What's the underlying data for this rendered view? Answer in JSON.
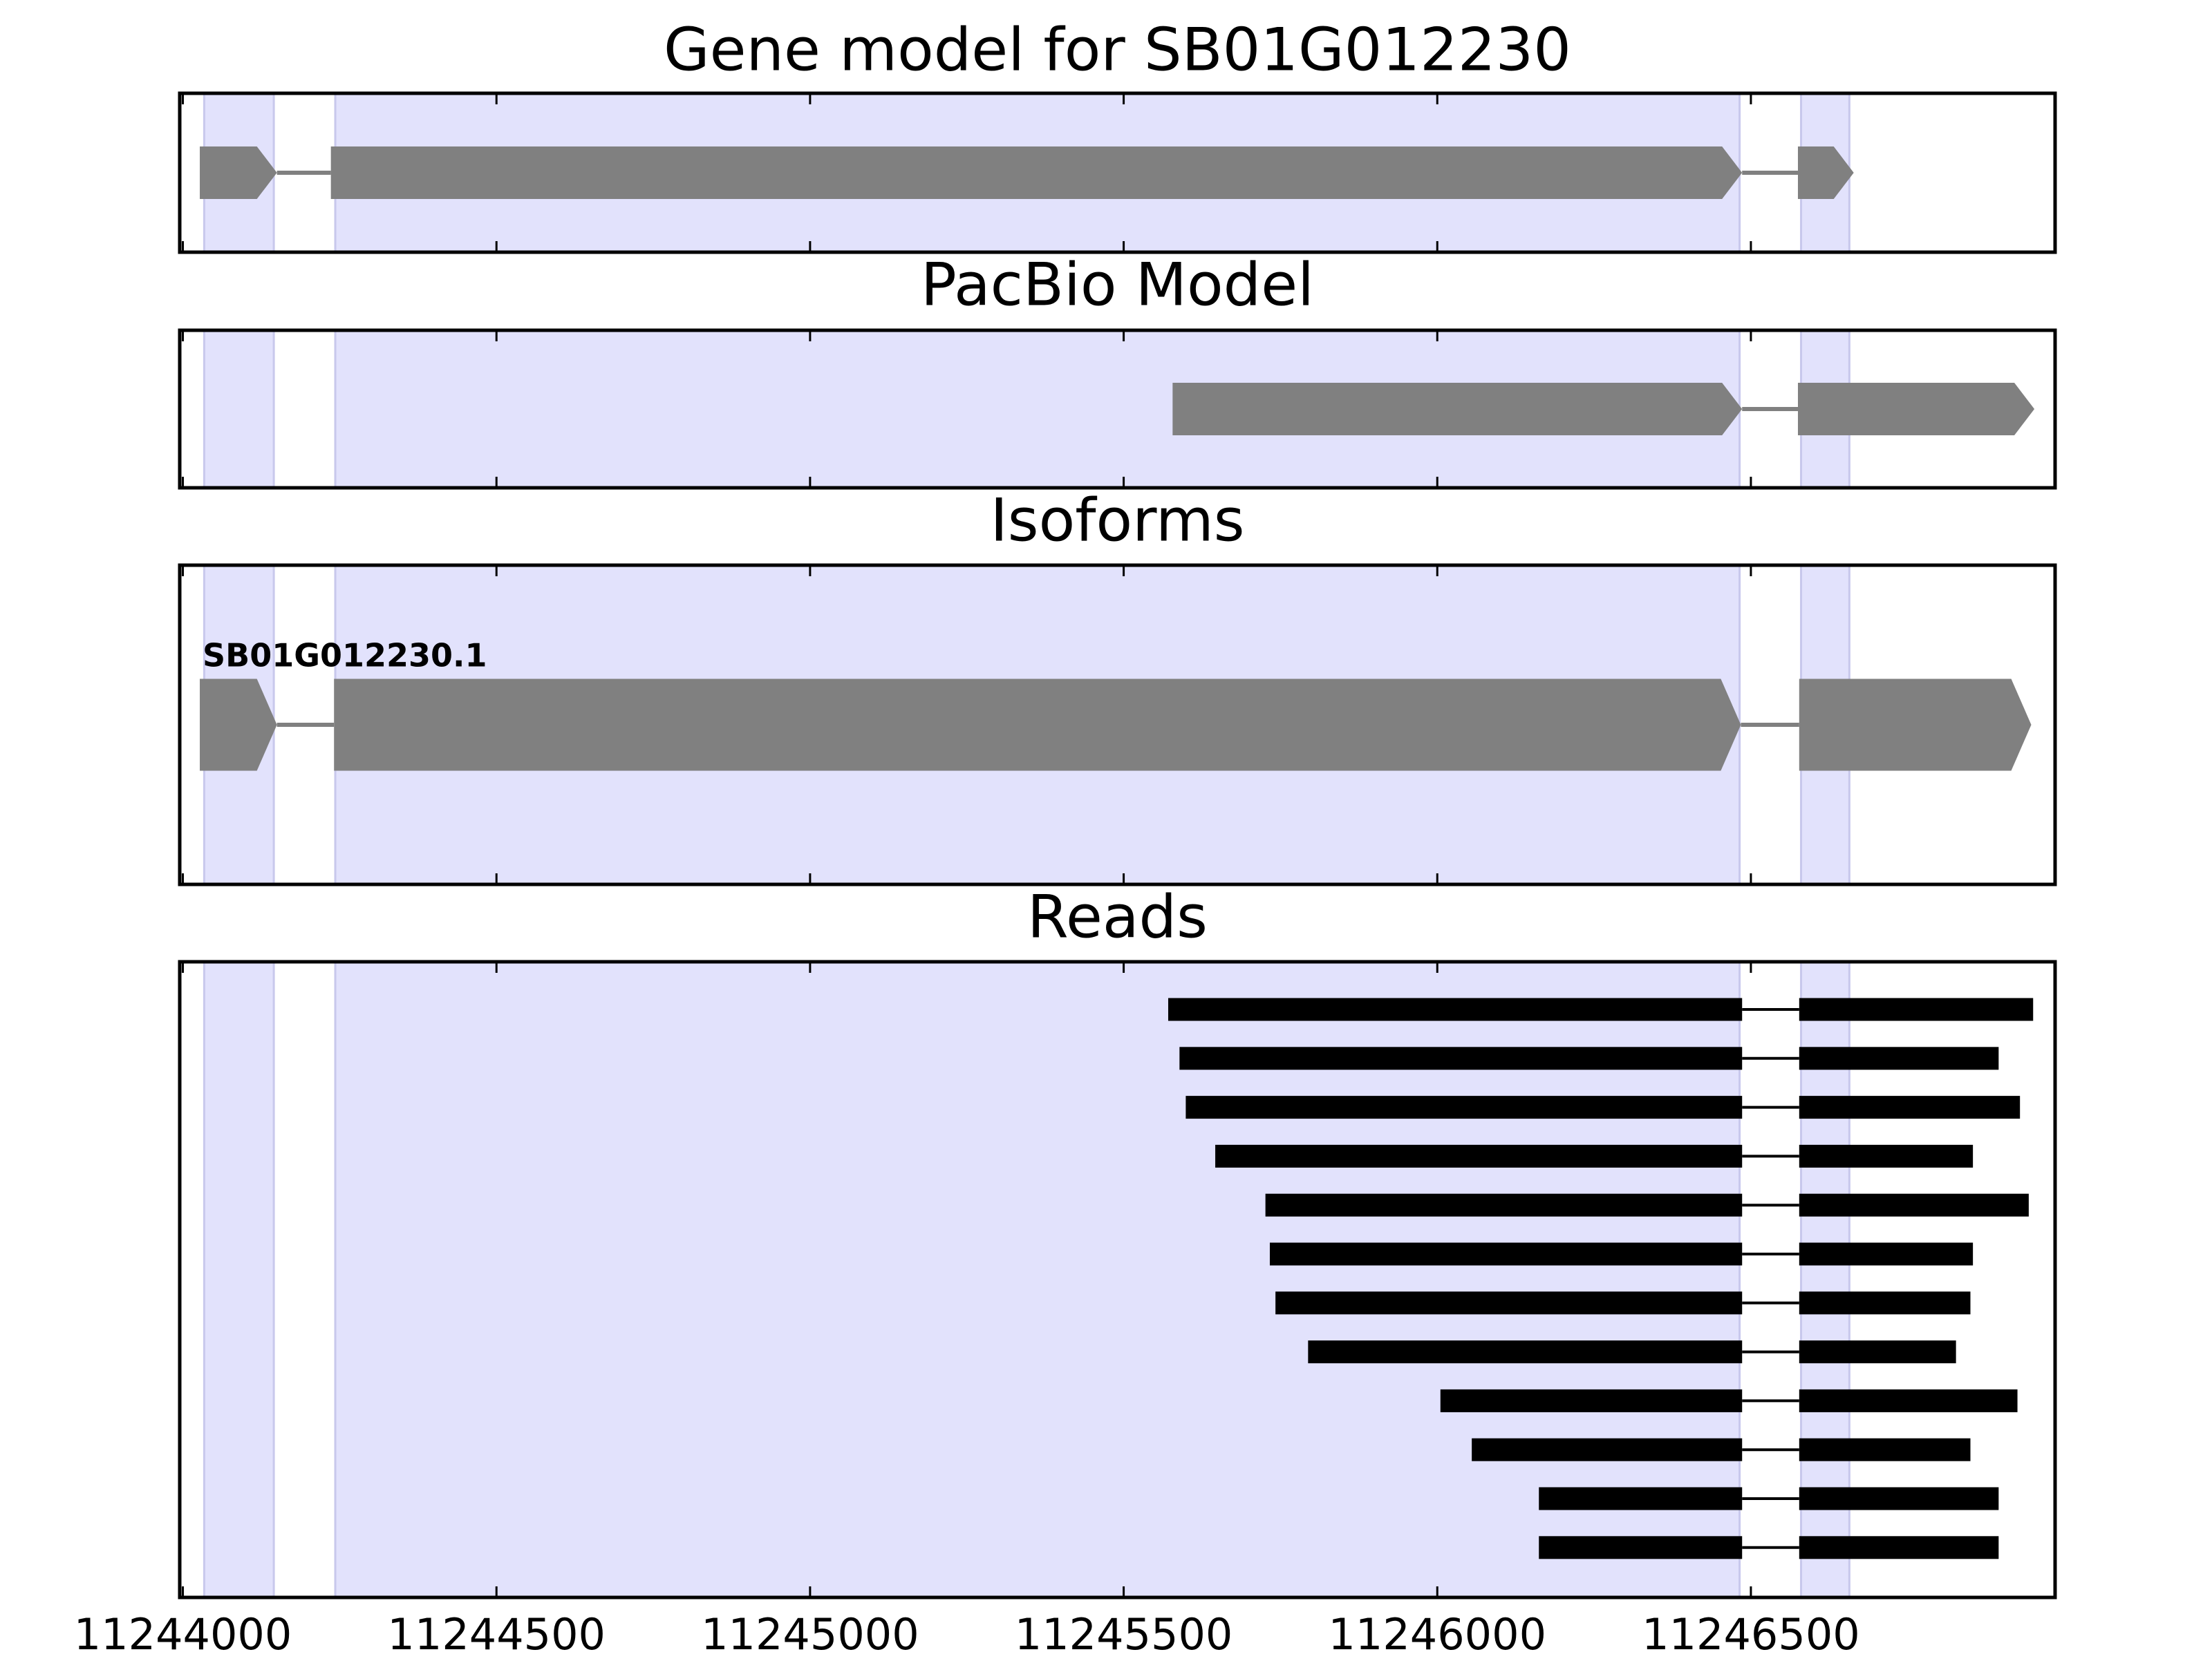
{
  "chart_data": [
    {
      "type": "gene-track",
      "title": "Gene model for SB01G012230",
      "color": "#808080",
      "highlight_color": "#e2e2fc",
      "xlim": [
        11243995,
        11246985
      ],
      "xticks": [
        11244000,
        11244500,
        11245000,
        11245500,
        11246000,
        11246500
      ],
      "highlights": [
        [
          11244034,
          11244145
        ],
        [
          11244243,
          11246482
        ],
        [
          11246580,
          11246657
        ]
      ],
      "exons": [
        [
          11244027,
          11244150
        ],
        [
          11244236,
          11246486
        ],
        [
          11246575,
          11246664
        ]
      ]
    },
    {
      "type": "gene-track",
      "title": "PacBio Model",
      "color": "#808080",
      "highlight_color": "#e2e2fc",
      "xlim": [
        11243995,
        11246985
      ],
      "xticks": [
        11244000,
        11244500,
        11245000,
        11245500,
        11246000,
        11246500
      ],
      "highlights": [
        [
          11244034,
          11244145
        ],
        [
          11244243,
          11246482
        ],
        [
          11246580,
          11246657
        ]
      ],
      "exons": [
        [
          11245578,
          11246486
        ],
        [
          11246575,
          11246952
        ]
      ]
    },
    {
      "type": "gene-track",
      "title": "Isoforms",
      "label": "SB01G012230.1",
      "color": "#808080",
      "highlight_color": "#e2e2fc",
      "xlim": [
        11243995,
        11246985
      ],
      "xticks": [
        11244000,
        11244500,
        11245000,
        11245500,
        11246000,
        11246500
      ],
      "highlights": [
        [
          11244034,
          11244145
        ],
        [
          11244243,
          11246482
        ],
        [
          11246580,
          11246657
        ]
      ],
      "exons": [
        [
          11244027,
          11244150
        ],
        [
          11244241,
          11246484
        ],
        [
          11246577,
          11246947
        ]
      ]
    },
    {
      "type": "reads",
      "title": "Reads",
      "color": "#000000",
      "highlight_color": "#e2e2fc",
      "xlim": [
        11243995,
        11246985
      ],
      "xticks": [
        11244000,
        11244500,
        11245000,
        11245500,
        11246000,
        11246500
      ],
      "highlights": [
        [
          11244034,
          11244145
        ],
        [
          11244243,
          11246482
        ],
        [
          11246580,
          11246657
        ]
      ],
      "reads": [
        [
          [
            11245571,
            11246486
          ],
          [
            11246577,
            11246950
          ]
        ],
        [
          [
            11245589,
            11246486
          ],
          [
            11246577,
            11246895
          ]
        ],
        [
          [
            11245599,
            11246486
          ],
          [
            11246577,
            11246929
          ]
        ],
        [
          [
            11245646,
            11246486
          ],
          [
            11246577,
            11246854
          ]
        ],
        [
          [
            11245726,
            11246486
          ],
          [
            11246577,
            11246943
          ]
        ],
        [
          [
            11245733,
            11246486
          ],
          [
            11246577,
            11246854
          ]
        ],
        [
          [
            11245742,
            11246486
          ],
          [
            11246577,
            11246850
          ]
        ],
        [
          [
            11245794,
            11246486
          ],
          [
            11246577,
            11246827
          ]
        ],
        [
          [
            11246005,
            11246486
          ],
          [
            11246577,
            11246925
          ]
        ],
        [
          [
            11246055,
            11246486
          ],
          [
            11246577,
            11246850
          ]
        ],
        [
          [
            11246162,
            11246486
          ],
          [
            11246577,
            11246895
          ]
        ],
        [
          [
            11246162,
            11246486
          ],
          [
            11246577,
            11246895
          ]
        ]
      ]
    }
  ]
}
